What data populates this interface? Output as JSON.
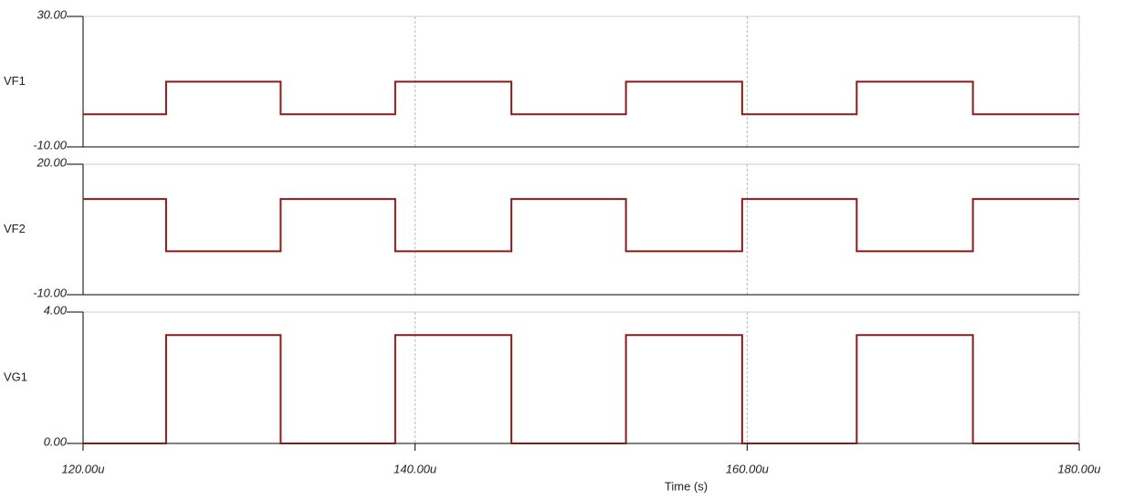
{
  "chart_data": [
    {
      "type": "line",
      "x": [
        120,
        125,
        125,
        131.9,
        131.9,
        138.8,
        138.8,
        145.8,
        145.8,
        152.7,
        152.7,
        159.7,
        159.7,
        166.6,
        166.6,
        173.6,
        173.6,
        180
      ],
      "series": [
        {
          "name": "VF1",
          "color": "#8b1a1a",
          "values": [
            0,
            0,
            10,
            10,
            0,
            0,
            10,
            10,
            0,
            0,
            10,
            10,
            0,
            0,
            10,
            10,
            0,
            0
          ]
        }
      ],
      "xlim": [
        120,
        180
      ],
      "xticks": [
        120,
        140,
        160,
        180
      ],
      "ylim": [
        -10,
        30
      ],
      "yticks": [
        {
          "value": -10,
          "label": "-10.00"
        },
        {
          "value": 30,
          "label": "30.00"
        }
      ],
      "grid": true
    },
    {
      "type": "line",
      "x": [
        120,
        125,
        125,
        131.9,
        131.9,
        138.8,
        138.8,
        145.8,
        145.8,
        152.7,
        152.7,
        159.7,
        159.7,
        166.6,
        166.6,
        173.6,
        173.6,
        180
      ],
      "series": [
        {
          "name": "VF2",
          "color": "#8b1a1a",
          "values": [
            12,
            12,
            0,
            0,
            12,
            12,
            0,
            0,
            12,
            12,
            0,
            0,
            12,
            12,
            0,
            0,
            12,
            12
          ]
        }
      ],
      "xlim": [
        120,
        180
      ],
      "xticks": [
        120,
        140,
        160,
        180
      ],
      "ylim": [
        -10,
        20
      ],
      "yticks": [
        {
          "value": -10,
          "label": "-10.00"
        },
        {
          "value": 20,
          "label": "20.00"
        }
      ],
      "grid": true
    },
    {
      "type": "line",
      "x": [
        120,
        125,
        125,
        131.9,
        131.9,
        138.8,
        138.8,
        145.8,
        145.8,
        152.7,
        152.7,
        159.7,
        159.7,
        166.6,
        166.6,
        173.6,
        173.6,
        180
      ],
      "series": [
        {
          "name": "VG1",
          "color": "#8b1a1a",
          "values": [
            0,
            0,
            3.3,
            3.3,
            0,
            0,
            3.3,
            3.3,
            0,
            0,
            3.3,
            3.3,
            0,
            0,
            3.3,
            3.3,
            0,
            0
          ]
        }
      ],
      "xlim": [
        120,
        180
      ],
      "xticks": [
        {
          "value": 120,
          "label": "120.00u"
        },
        {
          "value": 140,
          "label": "140.00u"
        },
        {
          "value": 160,
          "label": "160.00u"
        },
        {
          "value": 180,
          "label": "180.00u"
        }
      ],
      "xlabel": "Time (s)",
      "ylim": [
        0,
        4
      ],
      "yticks": [
        {
          "value": 0,
          "label": "0.00"
        },
        {
          "value": 4,
          "label": "4.00"
        }
      ],
      "grid": true
    }
  ]
}
